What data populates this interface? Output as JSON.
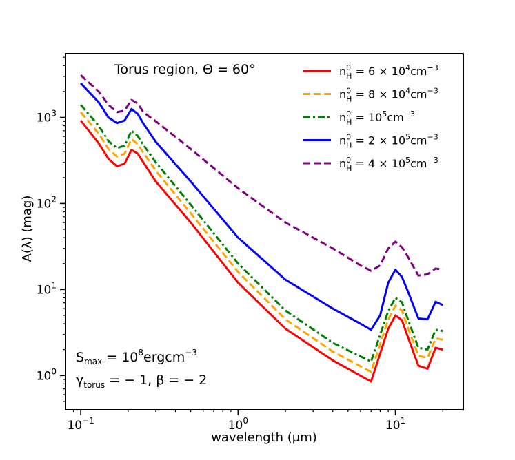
{
  "chart_data": {
    "type": "line",
    "title": "Torus region, Θ = 60°",
    "xlabel": "wavelength (μm)",
    "ylabel": "A(λ) (mag)",
    "xscale": "log",
    "yscale": "log",
    "xlim": [
      0.08,
      27
    ],
    "ylim": [
      0.4,
      5500
    ],
    "x_ticks": [
      {
        "value": 0.1,
        "base": "10",
        "exp": "−1"
      },
      {
        "value": 1,
        "base": "10",
        "exp": "0"
      },
      {
        "value": 10,
        "base": "10",
        "exp": "1"
      }
    ],
    "y_ticks": [
      {
        "value": 1,
        "base": "10",
        "exp": "0"
      },
      {
        "value": 10,
        "base": "10",
        "exp": "1"
      },
      {
        "value": 100,
        "base": "10",
        "exp": "2"
      },
      {
        "value": 1000,
        "base": "10",
        "exp": "3"
      }
    ],
    "annotations": {
      "smax": {
        "label": "S",
        "sub": "max",
        "rest": " = 10",
        "exp": "8",
        "unit": "ergcm",
        "unit_exp": "−3"
      },
      "gamma": {
        "label": "γ",
        "sub": "torus",
        "rest": " = − 1, β = − 2"
      }
    },
    "legend_placement": "top-right",
    "series": [
      {
        "name": "n_H^0 = 6 × 10^4 cm^-3",
        "legend": {
          "coef": "6 × 10",
          "exp": "4"
        },
        "color": "#ff0000",
        "dash": "solid",
        "x": [
          0.1,
          0.13,
          0.15,
          0.17,
          0.19,
          0.21,
          0.23,
          0.25,
          0.3,
          0.5,
          1,
          2,
          4,
          7,
          9,
          10,
          11,
          12,
          14,
          16,
          18,
          20
        ],
        "y": [
          920,
          500,
          330,
          270,
          290,
          420,
          380,
          300,
          180,
          60,
          12,
          3.5,
          1.5,
          0.85,
          3.5,
          5.0,
          4.4,
          2.8,
          1.3,
          1.2,
          2.1,
          2.0
        ]
      },
      {
        "name": "n_H^0 = 8 × 10^4 cm^-3",
        "legend": {
          "coef": "8 × 10",
          "exp": "4"
        },
        "color": "#ffa500",
        "dash": "dashed",
        "x": [
          0.1,
          0.13,
          0.15,
          0.17,
          0.19,
          0.21,
          0.23,
          0.25,
          0.3,
          0.5,
          1,
          2,
          4,
          7,
          9,
          10,
          11,
          12,
          14,
          16,
          18,
          20
        ],
        "y": [
          1150,
          650,
          430,
          350,
          380,
          560,
          490,
          390,
          240,
          77,
          16,
          4.5,
          1.9,
          1.1,
          4.5,
          6.5,
          5.7,
          3.6,
          1.7,
          1.6,
          2.7,
          2.6
        ]
      },
      {
        "name": "n_H^0 = 10^5 cm^-3",
        "legend": {
          "coef": "10",
          "exp": "5"
        },
        "color": "#008000",
        "dash": "dashdot",
        "x": [
          0.1,
          0.13,
          0.15,
          0.17,
          0.19,
          0.21,
          0.23,
          0.25,
          0.3,
          0.5,
          1,
          2,
          4,
          7,
          9,
          10,
          11,
          12,
          14,
          16,
          18,
          20
        ],
        "y": [
          1400,
          800,
          530,
          440,
          470,
          700,
          610,
          480,
          300,
          97,
          20,
          5.7,
          2.4,
          1.45,
          5.6,
          8.0,
          7.1,
          4.5,
          2.1,
          2.0,
          3.4,
          3.3
        ]
      },
      {
        "name": "n_H^0 = 2 × 10^5 cm^-3",
        "legend": {
          "coef": "2 × 10",
          "exp": "5"
        },
        "color": "#0000ff",
        "dash": "solid",
        "x": [
          0.1,
          0.13,
          0.15,
          0.17,
          0.19,
          0.21,
          0.23,
          0.25,
          0.3,
          0.5,
          1,
          2,
          4,
          6,
          7,
          8,
          9,
          10,
          11,
          12,
          14,
          16,
          18,
          20
        ],
        "y": [
          2500,
          1500,
          1000,
          860,
          920,
          1250,
          1100,
          850,
          520,
          180,
          40,
          13,
          6.0,
          4.0,
          3.4,
          5.0,
          12,
          17,
          14,
          9.5,
          4.6,
          4.5,
          7.2,
          6.6
        ]
      },
      {
        "name": "n_H^0 = 4 × 10^5 cm^-3",
        "legend": {
          "coef": "4 × 10",
          "exp": "5"
        },
        "color": "#800080",
        "dash": "dashed",
        "x": [
          0.1,
          0.13,
          0.15,
          0.17,
          0.19,
          0.21,
          0.23,
          0.25,
          0.3,
          0.5,
          1,
          2,
          4,
          6,
          7,
          8,
          9,
          10,
          11,
          12,
          14,
          16,
          18,
          20
        ],
        "y": [
          3100,
          2000,
          1400,
          1150,
          1200,
          1600,
          1450,
          1150,
          900,
          430,
          150,
          60,
          30,
          19,
          16.5,
          19,
          30,
          36,
          31,
          24,
          14.5,
          15,
          17.5,
          17
        ]
      }
    ]
  }
}
